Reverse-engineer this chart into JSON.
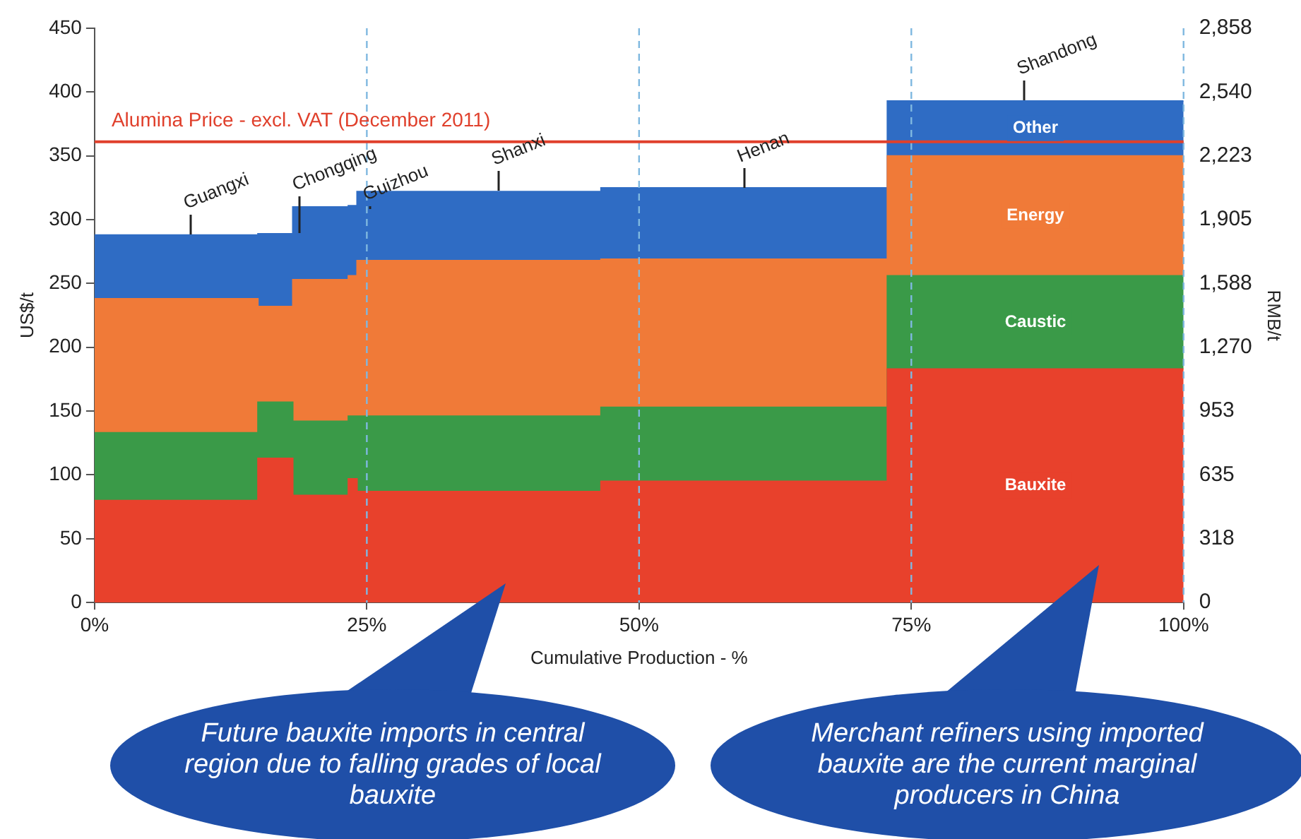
{
  "chart_data": {
    "type": "area",
    "stacked": true,
    "xlabel": "Cumulative Production - %",
    "ylabel": "US$/t",
    "y2label": "RMB/t",
    "x": [
      0,
      15,
      15,
      18.2,
      18.2,
      23.3,
      23.3,
      24.1,
      24.1,
      46.5,
      46.5,
      72.8,
      72.8,
      100
    ],
    "series": [
      {
        "name": "Bauxite",
        "color": "#e8412c",
        "values": [
          80,
          80,
          113,
          113,
          84,
          84,
          97,
          97,
          87,
          87,
          95,
          95,
          183,
          183
        ]
      },
      {
        "name": "Caustic",
        "color": "#3a9a48",
        "values": [
          53,
          53,
          44,
          44,
          58,
          58,
          49,
          49,
          59,
          59,
          58,
          58,
          73,
          73
        ]
      },
      {
        "name": "Energy",
        "color": "#f07a38",
        "values": [
          105,
          105,
          75,
          75,
          111,
          111,
          110,
          110,
          122,
          122,
          116,
          116,
          94,
          94
        ]
      },
      {
        "name": "Other",
        "color": "#2f6cc4",
        "values": [
          50,
          50,
          57,
          57,
          57,
          57,
          55,
          55,
          54,
          54,
          56,
          56,
          43,
          43
        ]
      }
    ],
    "xlim": [
      0,
      100
    ],
    "xticks": [
      {
        "value": 0,
        "label": "0%"
      },
      {
        "value": 25,
        "label": "25%"
      },
      {
        "value": 50,
        "label": "50%"
      },
      {
        "value": 75,
        "label": "75%"
      },
      {
        "value": 100,
        "label": "100%"
      }
    ],
    "ylim": [
      0,
      450
    ],
    "yticks": [
      0,
      50,
      100,
      150,
      200,
      250,
      300,
      350,
      400,
      450
    ],
    "y2lim": [
      0,
      2858
    ],
    "y2ticks": [
      0,
      {
        "value": 318,
        "label": "318"
      },
      {
        "value": 635,
        "label": "635"
      },
      {
        "value": 953,
        "label": "953"
      },
      {
        "value": 1270,
        "label": "1,270"
      },
      {
        "value": 1588,
        "label": "1,588"
      },
      {
        "value": 1905,
        "label": "1,905"
      },
      {
        "value": 2223,
        "label": "2,223"
      },
      {
        "value": 2540,
        "label": "2,540"
      },
      {
        "value": 2858,
        "label": "2,858"
      }
    ],
    "grid": "x",
    "legend": "right",
    "ref_lines": [
      {
        "axis": "y",
        "value": 361,
        "label": "Alumina Price - excl. VAT (December 2011)",
        "color": "#e0402c"
      }
    ],
    "annotations": [
      "Guangxi",
      "Chongqing",
      "Guizhou",
      "Shanxi",
      "Henan",
      "Shandong",
      "Future bauxite imports in central region due to falling grades of local bauxite",
      "Merchant refiners using imported bauxite are the current marginal producers in China"
    ]
  }
}
